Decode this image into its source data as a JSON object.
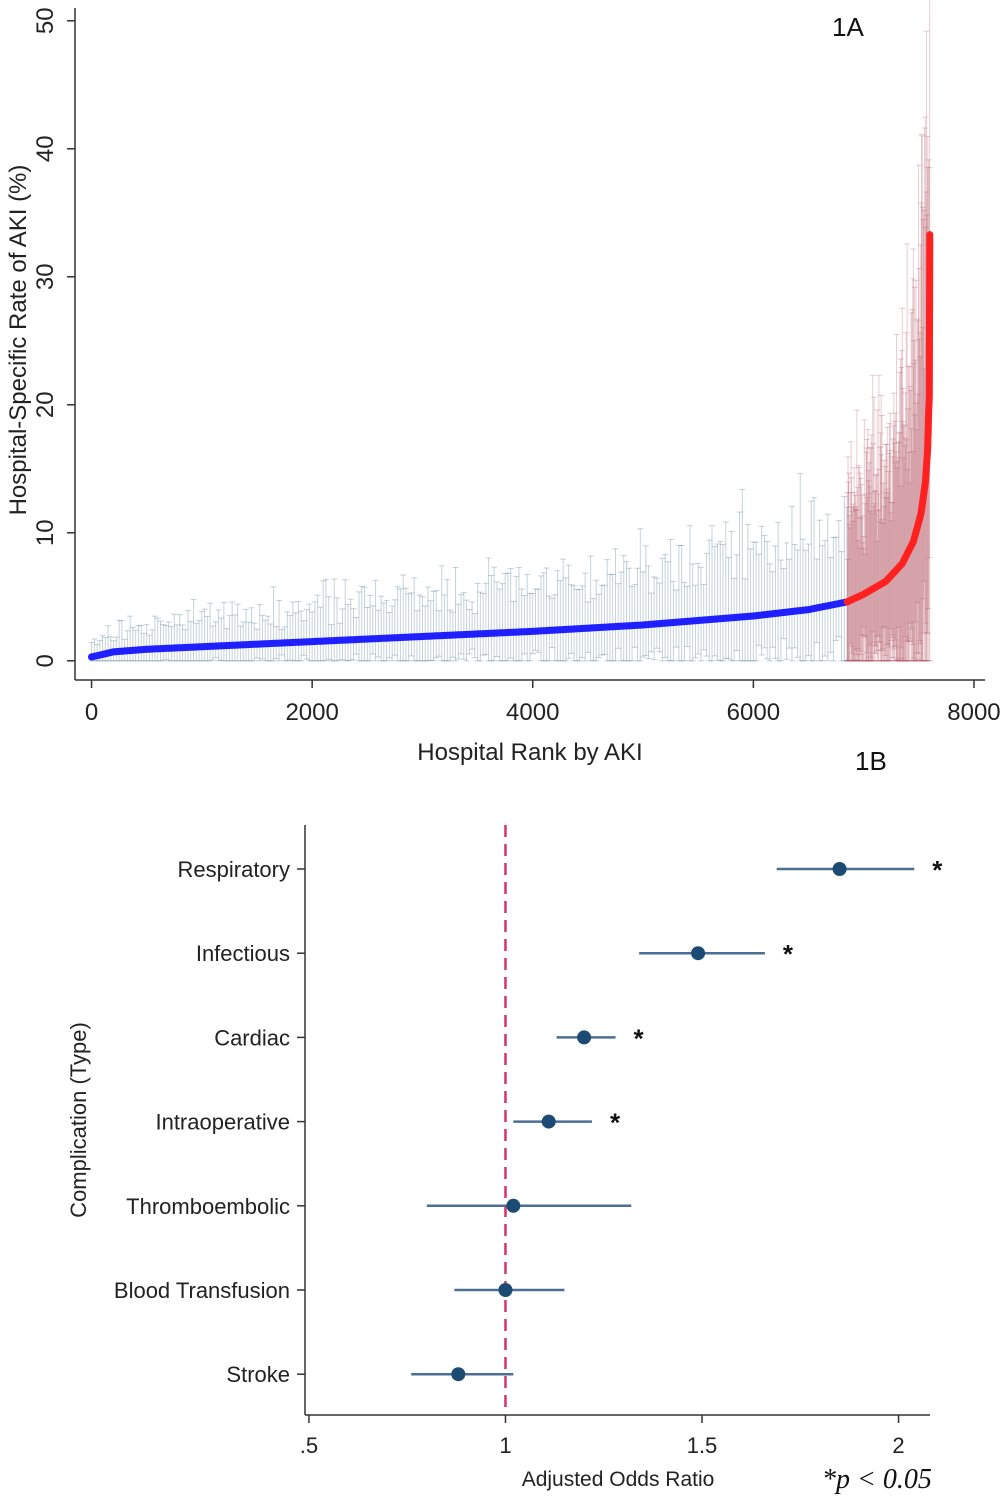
{
  "chart_data": [
    {
      "type": "scatter",
      "panel_label": "1A",
      "xlabel": "Hospital Rank by AKI",
      "ylabel": "Hospital-Specific Rate of AKI (%)",
      "xlim": [
        -150,
        8100
      ],
      "ylim": [
        -1.5,
        51
      ],
      "xticks": [
        0,
        2000,
        4000,
        6000,
        8000
      ],
      "yticks": [
        0,
        10,
        20,
        30,
        40,
        50
      ],
      "n_hospitals": 7600,
      "series": [
        {
          "color": "#1f1fff",
          "ci_color": "#2f5d7f",
          "x_range": [
            0,
            6850
          ],
          "curve": [
            [
              0,
              0.3
            ],
            [
              200,
              0.7
            ],
            [
              500,
              0.9
            ],
            [
              1000,
              1.1
            ],
            [
              2000,
              1.5
            ],
            [
              3000,
              1.9
            ],
            [
              4000,
              2.3
            ],
            [
              5000,
              2.8
            ],
            [
              6000,
              3.5
            ],
            [
              6500,
              4.0
            ],
            [
              6850,
              4.6
            ]
          ]
        },
        {
          "color": "#ff2020",
          "ci_color": "#b04a5a",
          "x_range": [
            6850,
            7600
          ],
          "curve": [
            [
              6850,
              4.6
            ],
            [
              7000,
              5.2
            ],
            [
              7200,
              6.2
            ],
            [
              7350,
              7.6
            ],
            [
              7450,
              9.3
            ],
            [
              7520,
              11.5
            ],
            [
              7560,
              14.0
            ],
            [
              7580,
              16.5
            ],
            [
              7590,
              19.5
            ],
            [
              7596,
              20.8
            ],
            [
              7600,
              33.3
            ]
          ]
        }
      ]
    },
    {
      "type": "forest",
      "panel_label": "1B",
      "xlabel": "Adjusted Odds Ratio",
      "ylabel": "Complication (Type)",
      "xlim": [
        0.49,
        2.08
      ],
      "xticks": [
        ".5",
        "1",
        "1.5",
        "2"
      ],
      "xtick_values": [
        0.5,
        1,
        1.5,
        2
      ],
      "reference_line": 1,
      "reference_color": "#d6336c",
      "point_color": "#1b4a72",
      "ci_color": "#4a6f93",
      "footnote": "*p < 0.05",
      "rows": [
        {
          "label": "Respiratory",
          "or": 1.85,
          "lo": 1.69,
          "hi": 2.04,
          "sig": "*"
        },
        {
          "label": "Infectious",
          "or": 1.49,
          "lo": 1.34,
          "hi": 1.66,
          "sig": "*"
        },
        {
          "label": "Cardiac",
          "or": 1.2,
          "lo": 1.13,
          "hi": 1.28,
          "sig": "*"
        },
        {
          "label": "Intraoperative",
          "or": 1.11,
          "lo": 1.02,
          "hi": 1.22,
          "sig": "*"
        },
        {
          "label": "Thromboembolic",
          "or": 1.02,
          "lo": 0.8,
          "hi": 1.32,
          "sig": ""
        },
        {
          "label": "Blood Transfusion",
          "or": 1.0,
          "lo": 0.87,
          "hi": 1.15,
          "sig": ""
        },
        {
          "label": "Stroke",
          "or": 0.88,
          "lo": 0.76,
          "hi": 1.02,
          "sig": ""
        }
      ]
    }
  ]
}
